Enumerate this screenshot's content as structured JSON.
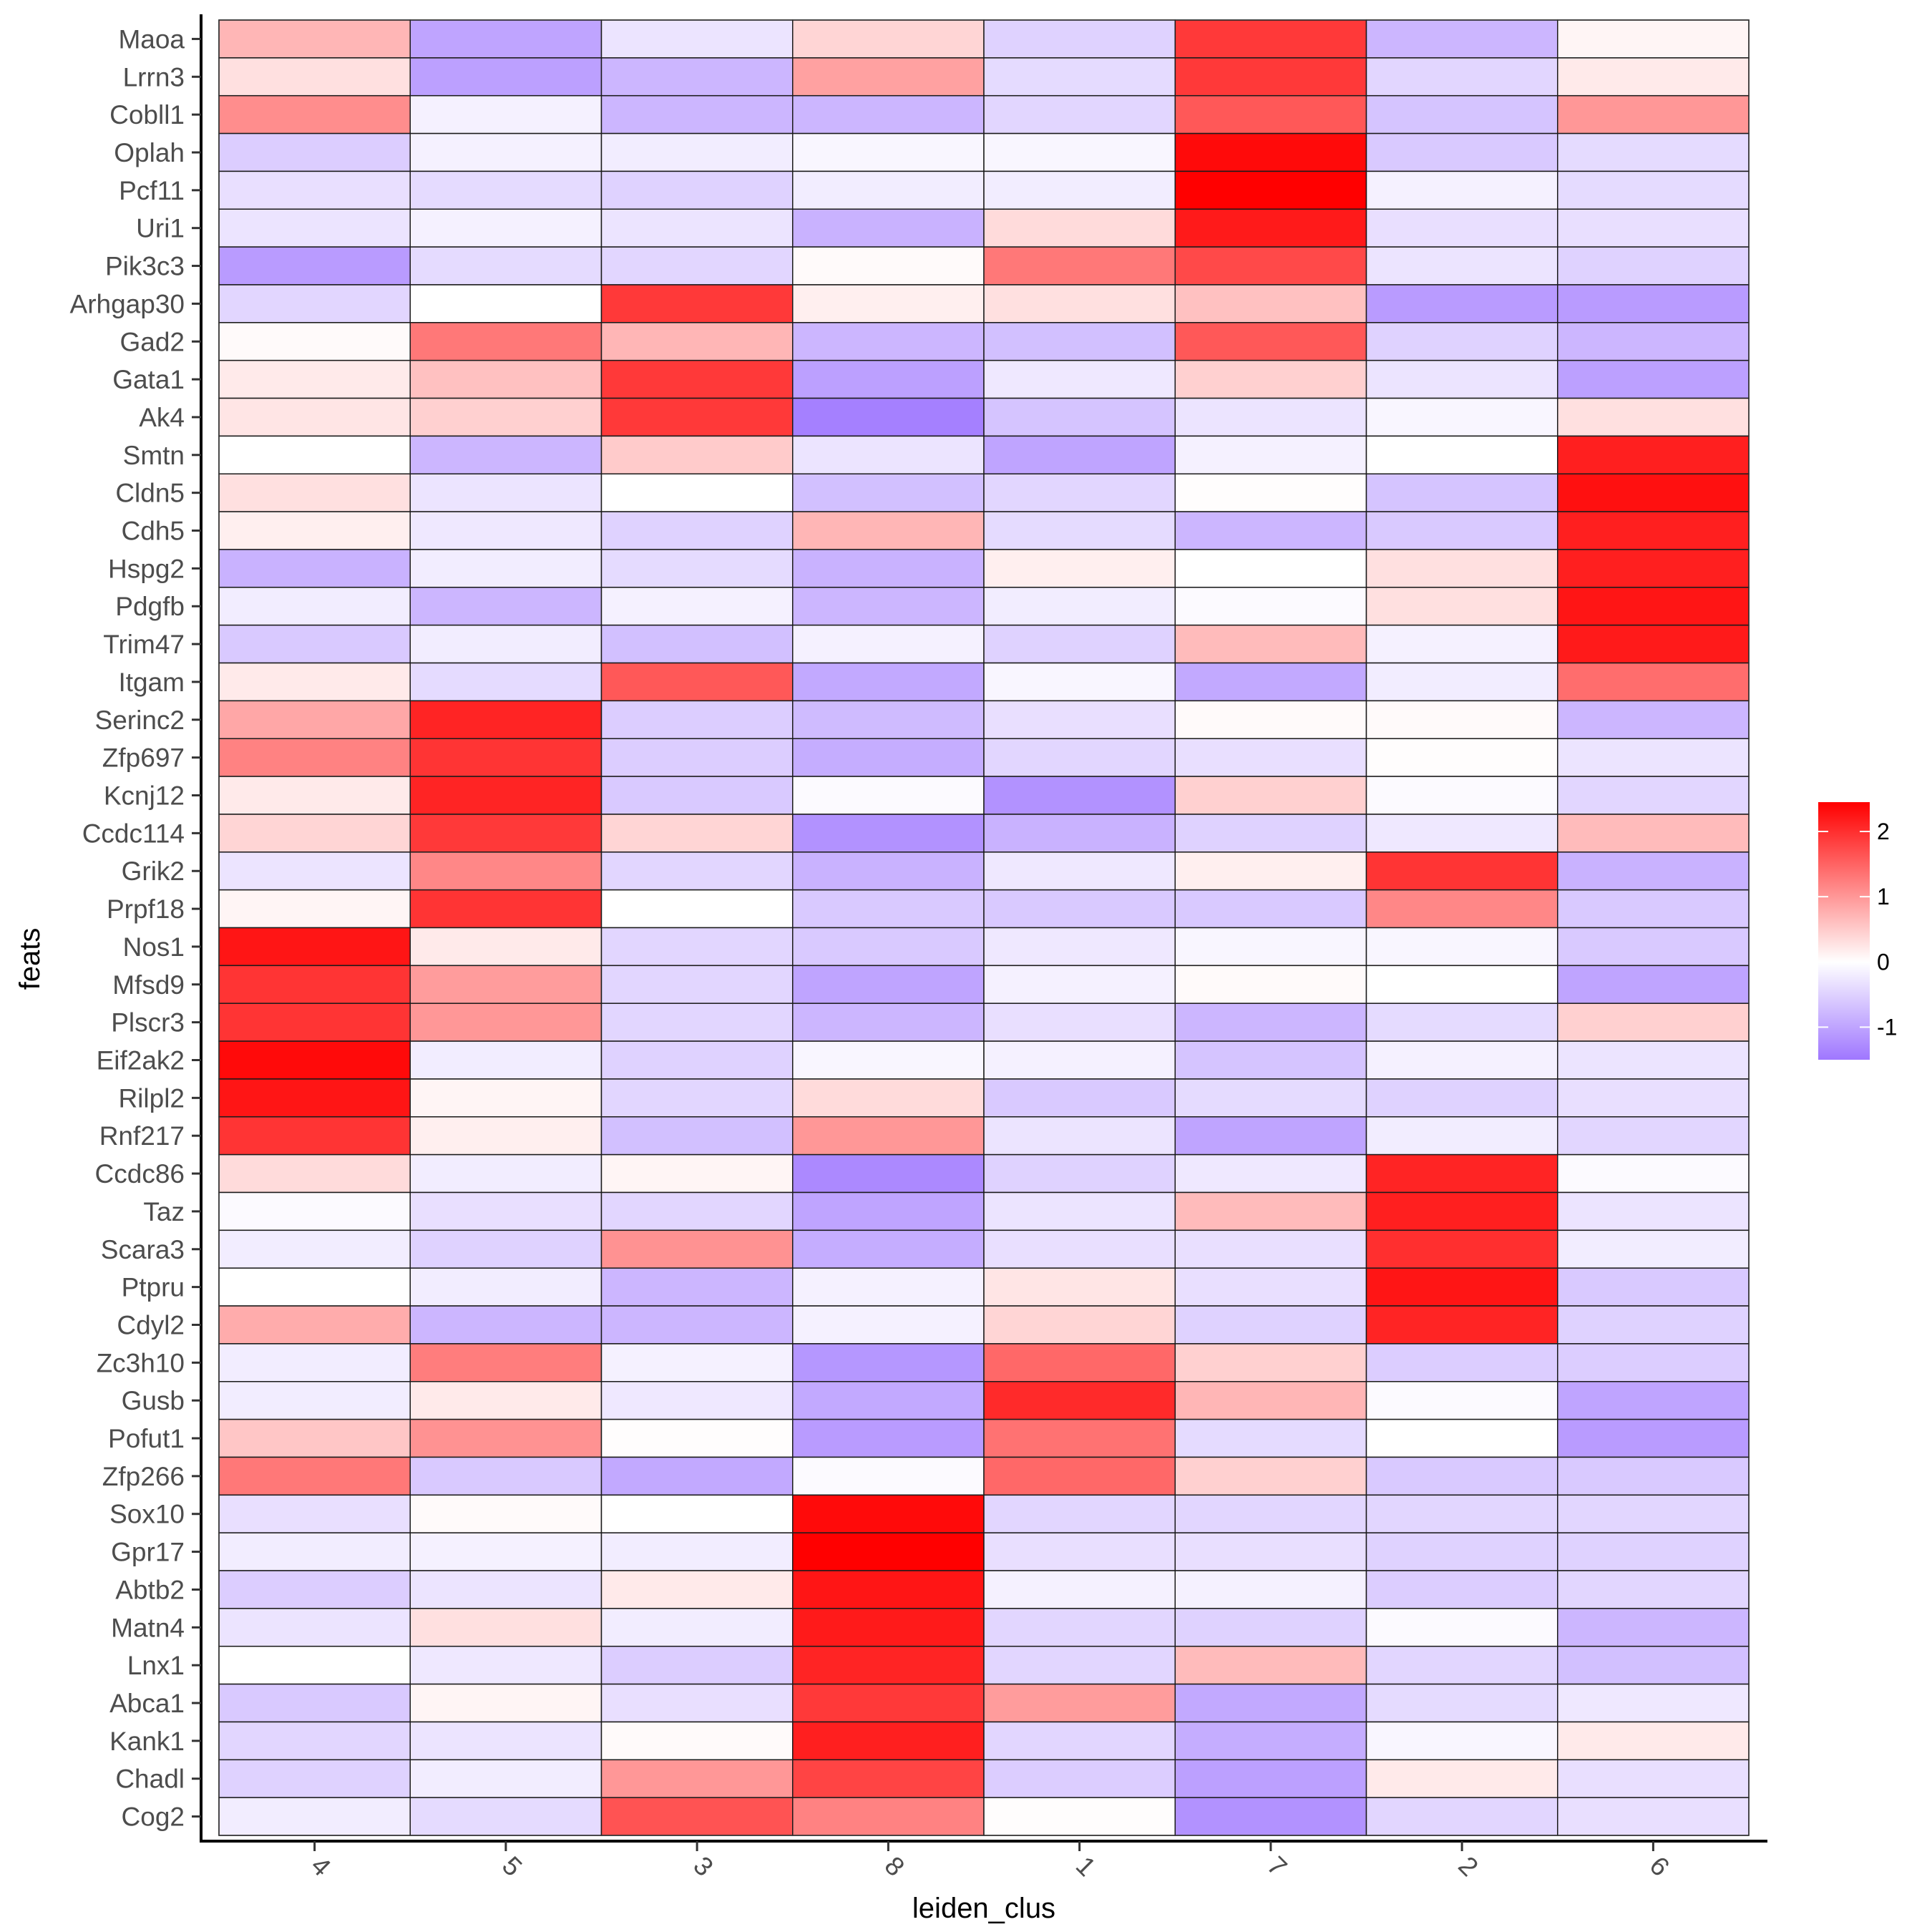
{
  "chart_data": {
    "type": "heatmap",
    "title": "",
    "xlabel": "leiden_clus",
    "ylabel": "feats",
    "x": [
      "4",
      "5",
      "3",
      "8",
      "1",
      "7",
      "2",
      "6"
    ],
    "y": [
      "Maoa",
      "Lrrn3",
      "Cobll1",
      "Oplah",
      "Pcf11",
      "Uri1",
      "Pik3c3",
      "Arhgap30",
      "Gad2",
      "Gata1",
      "Ak4",
      "Smtn",
      "Cldn5",
      "Cdh5",
      "Hspg2",
      "Pdgfb",
      "Trim47",
      "Itgam",
      "Serinc2",
      "Zfp697",
      "Kcnj12",
      "Ccdc114",
      "Grik2",
      "Prpf18",
      "Nos1",
      "Mfsd9",
      "Plscr3",
      "Eif2ak2",
      "Rilpl2",
      "Rnf217",
      "Ccdc86",
      "Taz",
      "Scara3",
      "Ptpru",
      "Cdyl2",
      "Zc3h10",
      "Gusb",
      "Pofut1",
      "Zfp266",
      "Sox10",
      "Gpr17",
      "Abtb2",
      "Matn4",
      "Lnx1",
      "Abca1",
      "Kank1",
      "Chadl",
      "Cog2"
    ],
    "values": [
      [
        0.7,
        -1.0,
        -0.3,
        0.4,
        -0.5,
        1.9,
        -0.8,
        0.1
      ],
      [
        0.3,
        -1.05,
        -0.8,
        0.9,
        -0.4,
        1.9,
        -0.45,
        0.2
      ],
      [
        1.1,
        -0.15,
        -0.8,
        -0.8,
        -0.45,
        1.6,
        -0.65,
        1.0
      ],
      [
        -0.55,
        -0.15,
        -0.2,
        -0.1,
        -0.1,
        2.35,
        -0.6,
        -0.4
      ],
      [
        -0.35,
        -0.4,
        -0.5,
        -0.2,
        -0.2,
        2.45,
        -0.15,
        -0.4
      ],
      [
        -0.3,
        -0.15,
        -0.3,
        -0.85,
        0.35,
        2.2,
        -0.35,
        -0.35
      ],
      [
        -1.1,
        -0.4,
        -0.45,
        0.05,
        1.3,
        1.75,
        -0.3,
        -0.5
      ],
      [
        -0.45,
        0.0,
        1.9,
        0.15,
        0.3,
        0.6,
        -1.1,
        -1.1
      ],
      [
        0.05,
        1.3,
        0.7,
        -0.8,
        -0.7,
        1.6,
        -0.5,
        -0.8
      ],
      [
        0.2,
        0.6,
        1.9,
        -1.05,
        -0.25,
        0.45,
        -0.3,
        -1.05
      ],
      [
        0.25,
        0.45,
        1.9,
        -1.4,
        -0.65,
        -0.3,
        -0.1,
        0.3
      ],
      [
        0.0,
        -0.8,
        0.5,
        -0.3,
        -1.0,
        -0.15,
        0.0,
        2.15
      ],
      [
        0.3,
        -0.3,
        0.0,
        -0.7,
        -0.45,
        0.02,
        -0.65,
        2.3
      ],
      [
        0.15,
        -0.25,
        -0.5,
        0.7,
        -0.4,
        -0.8,
        -0.6,
        2.15
      ],
      [
        -0.85,
        -0.2,
        -0.4,
        -0.85,
        0.15,
        0.0,
        0.3,
        2.15
      ],
      [
        -0.2,
        -0.8,
        -0.15,
        -0.8,
        -0.2,
        -0.05,
        0.3,
        2.25
      ],
      [
        -0.6,
        -0.2,
        -0.7,
        -0.15,
        -0.5,
        0.65,
        -0.15,
        2.2
      ],
      [
        0.2,
        -0.4,
        1.6,
        -0.95,
        -0.1,
        -0.95,
        -0.2,
        1.4
      ],
      [
        0.85,
        2.1,
        -0.55,
        -0.75,
        -0.35,
        0.05,
        0.05,
        -0.8
      ],
      [
        1.2,
        1.95,
        -0.55,
        -0.9,
        -0.45,
        -0.35,
        0.02,
        -0.3
      ],
      [
        0.2,
        2.1,
        -0.6,
        -0.05,
        -1.2,
        0.45,
        -0.05,
        -0.45
      ],
      [
        0.4,
        1.9,
        0.4,
        -1.2,
        -0.85,
        -0.5,
        -0.25,
        0.65
      ],
      [
        -0.3,
        1.15,
        -0.45,
        -0.85,
        -0.25,
        0.15,
        1.95,
        -0.85
      ],
      [
        0.1,
        1.95,
        0.0,
        -0.6,
        -0.6,
        -0.6,
        1.15,
        -0.6
      ],
      [
        2.25,
        0.2,
        -0.45,
        -0.6,
        -0.25,
        -0.1,
        -0.1,
        -0.6
      ],
      [
        1.95,
        0.95,
        -0.45,
        -1.0,
        -0.15,
        0.05,
        0.0,
        -1.0
      ],
      [
        1.95,
        1.0,
        -0.45,
        -0.8,
        -0.35,
        -0.8,
        -0.4,
        0.45
      ],
      [
        2.35,
        -0.2,
        -0.5,
        -0.1,
        -0.15,
        -0.65,
        -0.15,
        -0.3
      ],
      [
        2.25,
        0.1,
        -0.45,
        0.35,
        -0.6,
        -0.4,
        -0.5,
        -0.35
      ],
      [
        1.95,
        0.15,
        -0.7,
        1.0,
        -0.3,
        -1.0,
        -0.2,
        -0.45
      ],
      [
        0.35,
        -0.2,
        0.1,
        -1.3,
        -0.5,
        -0.25,
        2.1,
        -0.05
      ],
      [
        -0.05,
        -0.35,
        -0.45,
        -1.0,
        -0.3,
        0.65,
        2.15,
        -0.3
      ],
      [
        -0.2,
        -0.5,
        1.05,
        -0.9,
        -0.35,
        -0.35,
        2.0,
        -0.2
      ],
      [
        0.0,
        -0.2,
        -0.8,
        -0.15,
        0.25,
        -0.35,
        2.25,
        -0.6
      ],
      [
        0.8,
        -0.8,
        -0.8,
        -0.15,
        0.4,
        -0.5,
        2.1,
        -0.5
      ],
      [
        -0.2,
        1.25,
        -0.15,
        -1.15,
        1.45,
        0.45,
        -0.55,
        -0.55
      ],
      [
        -0.2,
        0.2,
        -0.25,
        -0.95,
        2.05,
        0.7,
        -0.05,
        -1.0
      ],
      [
        0.55,
        1.05,
        0.02,
        -1.1,
        1.35,
        -0.4,
        0.0,
        -1.1
      ],
      [
        1.3,
        -0.6,
        -0.95,
        -0.05,
        1.45,
        0.45,
        -0.6,
        -0.6
      ],
      [
        -0.35,
        0.05,
        0.0,
        2.35,
        -0.45,
        -0.45,
        -0.45,
        -0.45
      ],
      [
        -0.2,
        -0.15,
        -0.2,
        2.45,
        -0.35,
        -0.35,
        -0.5,
        -0.5
      ],
      [
        -0.55,
        -0.3,
        0.2,
        2.25,
        -0.15,
        -0.15,
        -0.55,
        -0.45
      ],
      [
        -0.3,
        0.3,
        -0.2,
        2.2,
        -0.45,
        -0.5,
        -0.05,
        -0.8
      ],
      [
        0.0,
        -0.25,
        -0.55,
        2.1,
        -0.45,
        0.65,
        -0.45,
        -0.7
      ],
      [
        -0.6,
        0.1,
        -0.35,
        1.9,
        0.95,
        -0.95,
        -0.4,
        -0.25
      ],
      [
        -0.45,
        -0.3,
        0.05,
        2.15,
        -0.45,
        -0.9,
        -0.1,
        0.2
      ],
      [
        -0.5,
        -0.2,
        1.0,
        1.8,
        -0.55,
        -1.05,
        0.2,
        -0.35
      ],
      [
        -0.2,
        -0.4,
        1.65,
        1.2,
        0.02,
        -1.2,
        -0.45,
        -0.35
      ]
    ],
    "color_scale": {
      "low": "#9F77FF",
      "mid": "#FFFFFF",
      "high": "#FF0000",
      "midpoint": 0,
      "limits": [
        -1.5,
        2.45
      ]
    },
    "legend": {
      "title": "",
      "position": "right",
      "ticks": [
        2,
        1,
        0,
        -1
      ],
      "tick_labels": [
        "2",
        "1",
        "0",
        "-1"
      ]
    },
    "grid": false
  }
}
